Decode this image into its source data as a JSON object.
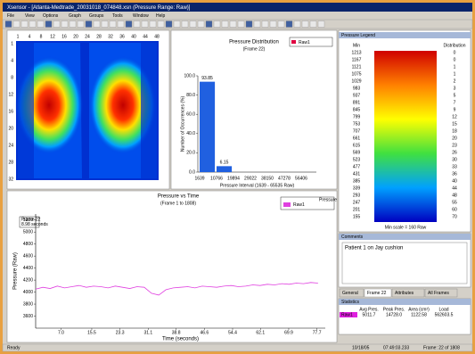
{
  "window": {
    "title": "Xsensor - [Atlanta-Medtrade_20031018_074848.xsn (Pressure Range: Raw)]",
    "menu": [
      "File",
      "View",
      "Options",
      "Graph",
      "Groups",
      "Tools",
      "Window",
      "Help"
    ]
  },
  "pressure_map": {
    "col_labels": [
      1,
      4,
      8,
      12,
      16,
      20,
      24,
      28,
      32,
      36,
      40,
      44,
      48
    ],
    "row_labels": [
      1,
      4,
      8,
      12,
      16,
      20,
      24,
      28,
      32
    ]
  },
  "chart_data": [
    {
      "type": "bar",
      "title": "Pressure Distribution",
      "subtitle": "(Frame 22)",
      "x_label": "Pressure Interval (1639 - 65535 Raw)",
      "y_label": "Number of Occurrences (%)",
      "categories": [
        "1639",
        "10766",
        "19894",
        "29022",
        "38150",
        "47278",
        "56406"
      ],
      "series": [
        {
          "name": "Raw1",
          "color": "#2060e0",
          "values": [
            93.85,
            6.15,
            0,
            0,
            0,
            0,
            0
          ]
        }
      ],
      "ylim": [
        0,
        100
      ],
      "yticks": [
        {
          "value": 0,
          "label": "0.0"
        },
        {
          "value": 20,
          "label": "20.0"
        },
        {
          "value": 40,
          "label": "40.0"
        },
        {
          "value": 60,
          "label": "60.0"
        },
        {
          "value": 80,
          "label": "80.0"
        },
        {
          "value": 100,
          "label": "100.0"
        }
      ]
    },
    {
      "type": "line",
      "title": "Pressure vs Time",
      "subtitle": "(Frame 1 to 1808)",
      "x_label": "Time (seconds)",
      "y_label": "Pressure (Raw)",
      "annotation": [
        "Frame 22",
        "8.98 seconds"
      ],
      "legend_header": "Pressure",
      "x": [
        0,
        2,
        4,
        6,
        8,
        10,
        12,
        14,
        16,
        18,
        20,
        22,
        24,
        26,
        28,
        30,
        32,
        34,
        36,
        38,
        40,
        42,
        44,
        46,
        48,
        50,
        52,
        54,
        56,
        58,
        60,
        62,
        64,
        66,
        68,
        70,
        72,
        74,
        76,
        78
      ],
      "series": [
        {
          "name": "Raw1",
          "color": "#e040e0",
          "values": [
            4050,
            4080,
            4060,
            4100,
            4070,
            4090,
            4110,
            4080,
            4100,
            4090,
            4070,
            4100,
            4080,
            4060,
            4090,
            4080,
            3980,
            3950,
            4040,
            4070,
            4080,
            4090,
            4070,
            4100,
            4090,
            4080,
            4100,
            4110,
            4090,
            4100,
            4120,
            4110,
            4130,
            4120,
            4140,
            4130,
            4150,
            4140,
            4160,
            4150
          ]
        }
      ],
      "xlim": [
        0,
        80
      ],
      "xticks": [
        {
          "value": 7,
          "label": "7.0"
        },
        {
          "value": 15.5,
          "label": "15.5"
        },
        {
          "value": 23.3,
          "label": "23.3"
        },
        {
          "value": 31.1,
          "label": "31.1"
        },
        {
          "value": 38.8,
          "label": "38.8"
        },
        {
          "value": 46.6,
          "label": "46.6"
        },
        {
          "value": 54.4,
          "label": "54.4"
        },
        {
          "value": 62.1,
          "label": "62.1"
        },
        {
          "value": 69.9,
          "label": "69.9"
        },
        {
          "value": 77.7,
          "label": "77.7"
        }
      ],
      "ylim": [
        3400,
        5300
      ],
      "yticks": [
        3600,
        3800,
        4000,
        4200,
        4400,
        4600,
        4800,
        5000,
        5200
      ]
    }
  ],
  "legend_panel": {
    "title": "Pressure Legend",
    "headers": [
      "Min",
      "Distribution"
    ],
    "rows": [
      [
        "1213",
        "0"
      ],
      [
        "1167",
        "0"
      ],
      [
        "1121",
        "1"
      ],
      [
        "1075",
        "1"
      ],
      [
        "1029",
        "2"
      ],
      [
        "983",
        "3"
      ],
      [
        "937",
        "5"
      ],
      [
        "891",
        "7"
      ],
      [
        "845",
        "9"
      ],
      [
        "799",
        "12"
      ],
      [
        "753",
        "15"
      ],
      [
        "707",
        "18"
      ],
      [
        "661",
        "20"
      ],
      [
        "615",
        "23"
      ],
      [
        "569",
        "26"
      ],
      [
        "523",
        "30"
      ],
      [
        "477",
        "33"
      ],
      [
        "431",
        "36"
      ],
      [
        "385",
        "40"
      ],
      [
        "339",
        "44"
      ],
      [
        "293",
        "48"
      ],
      [
        "247",
        "55"
      ],
      [
        "201",
        "60"
      ],
      [
        "155",
        "70"
      ]
    ],
    "footer": "Min scale = 160 Raw"
  },
  "comments": {
    "title": "Comments",
    "text": "Patient 1 on Jay cushion"
  },
  "tabs": [
    "General",
    "Frame 22",
    "Attributes",
    "All Frames"
  ],
  "stats": {
    "title": "Statistics",
    "headers": [
      "Avg Pres.",
      "Peak Pres.",
      "Area (cm²)",
      "Load"
    ],
    "rows": [
      [
        "Raw1",
        "5011.7",
        "14728.0",
        "1122.58",
        "562603.5"
      ]
    ]
  },
  "status": [
    "Ready",
    "10/18/05",
    "07:49:03.233",
    "Frame: 22 of 1808"
  ]
}
